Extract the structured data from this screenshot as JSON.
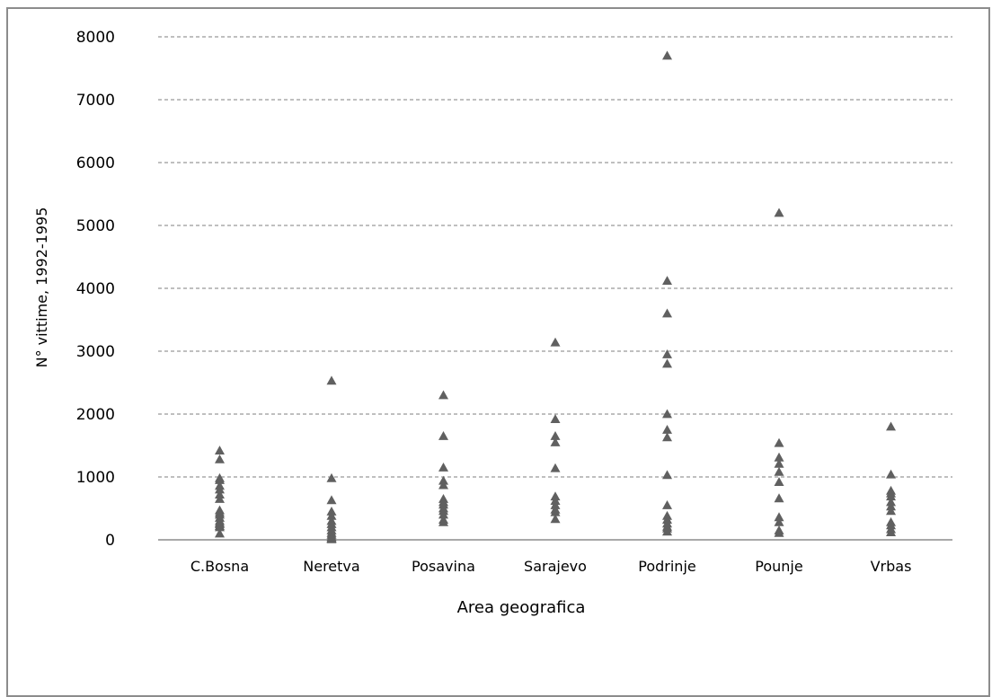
{
  "chart_data": {
    "type": "scatter",
    "title": "",
    "xlabel": "Area geografica",
    "ylabel": "N° vittime, 1992-1995",
    "ylim": [
      0,
      8000
    ],
    "yticks": [
      0,
      1000,
      2000,
      3000,
      4000,
      5000,
      6000,
      7000,
      8000
    ],
    "grid": true,
    "legend": "none",
    "marker": "triangle",
    "marker_color": "#606060",
    "grid_color": "#7f7f7f",
    "categories": [
      "C.Bosna",
      "Neretva",
      "Posavina",
      "Sarajevo",
      "Podrinje",
      "Pounje",
      "Vrbas"
    ],
    "values": [
      [
        1420,
        1280,
        980,
        950,
        860,
        800,
        720,
        650,
        470,
        430,
        400,
        350,
        300,
        270,
        250,
        220,
        200,
        100
      ],
      [
        2530,
        980,
        630,
        450,
        380,
        300,
        250,
        200,
        150,
        110,
        80,
        50,
        30,
        20,
        10
      ],
      [
        2300,
        1650,
        1150,
        940,
        870,
        650,
        600,
        560,
        500,
        460,
        400,
        320,
        280
      ],
      [
        3140,
        1920,
        1650,
        1550,
        1140,
        690,
        620,
        550,
        480,
        440,
        330
      ],
      [
        7700,
        4120,
        3600,
        2950,
        2800,
        2000,
        1750,
        1630,
        1030,
        550,
        380,
        320,
        260,
        210,
        180,
        130
      ],
      [
        5200,
        1540,
        1310,
        1210,
        1080,
        920,
        660,
        360,
        280,
        150,
        110
      ],
      [
        1800,
        1040,
        780,
        740,
        690,
        600,
        530,
        460,
        280,
        230,
        170,
        120
      ]
    ]
  }
}
